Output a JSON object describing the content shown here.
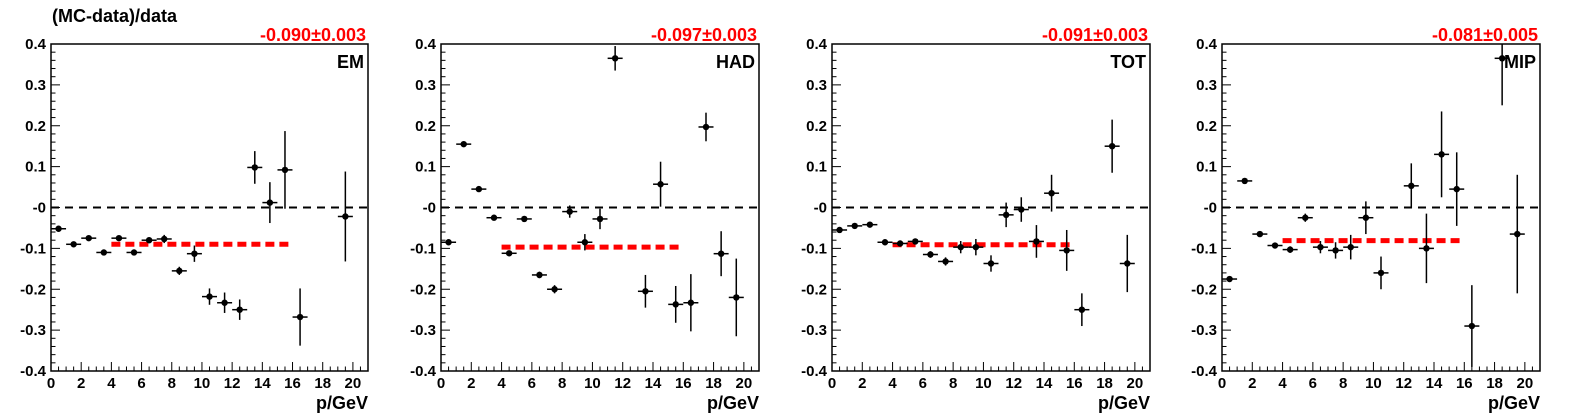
{
  "figure": {
    "ylabel": "(MC-data)/data"
  },
  "chart_data": [
    {
      "type": "scatter",
      "panel": "EM",
      "fit_label": "-0.090±0.003",
      "fit_value": -0.09,
      "fit_range": [
        4,
        16
      ],
      "xlabel": "p/GeV",
      "xlim": [
        0,
        21
      ],
      "ylim": [
        -0.4,
        0.4
      ],
      "x_ticks": [
        "0",
        "2",
        "4",
        "6",
        "8",
        "10",
        "12",
        "14",
        "16",
        "18",
        "20"
      ],
      "y_ticks": [
        "-0.4",
        "-0.3",
        "-0.2",
        "-0.1",
        "-0",
        "0.1",
        "0.2",
        "0.3",
        "0.4"
      ],
      "reference_line": 0,
      "points": [
        {
          "x": 0.5,
          "y": -0.052,
          "err": 0.004
        },
        {
          "x": 1.5,
          "y": -0.09,
          "err": 0.004
        },
        {
          "x": 2.5,
          "y": -0.075,
          "err": 0.004
        },
        {
          "x": 3.5,
          "y": -0.11,
          "err": 0.004
        },
        {
          "x": 4.5,
          "y": -0.075,
          "err": 0.006
        },
        {
          "x": 5.5,
          "y": -0.11,
          "err": 0.006
        },
        {
          "x": 6.5,
          "y": -0.08,
          "err": 0.007
        },
        {
          "x": 7.5,
          "y": -0.077,
          "err": 0.01
        },
        {
          "x": 8.5,
          "y": -0.155,
          "err": 0.01
        },
        {
          "x": 9.5,
          "y": -0.113,
          "err": 0.02
        },
        {
          "x": 10.5,
          "y": -0.218,
          "err": 0.02
        },
        {
          "x": 11.5,
          "y": -0.233,
          "err": 0.025
        },
        {
          "x": 12.5,
          "y": -0.25,
          "err": 0.025
        },
        {
          "x": 13.5,
          "y": 0.098,
          "err": 0.04
        },
        {
          "x": 14.5,
          "y": 0.012,
          "err": 0.05
        },
        {
          "x": 15.5,
          "y": 0.092,
          "err": 0.095
        },
        {
          "x": 16.5,
          "y": -0.268,
          "err": 0.07
        },
        {
          "x": 19.5,
          "y": -0.022,
          "err": 0.11
        }
      ]
    },
    {
      "type": "scatter",
      "panel": "HAD",
      "fit_label": "-0.097±0.003",
      "fit_value": -0.097,
      "fit_range": [
        4,
        16
      ],
      "xlabel": "p/GeV",
      "xlim": [
        0,
        21
      ],
      "ylim": [
        -0.4,
        0.4
      ],
      "x_ticks": [
        "0",
        "2",
        "4",
        "6",
        "8",
        "10",
        "12",
        "14",
        "16",
        "18",
        "20"
      ],
      "y_ticks": [
        "-0.4",
        "-0.3",
        "-0.2",
        "-0.1",
        "-0",
        "0.1",
        "0.2",
        "0.3",
        "0.4"
      ],
      "reference_line": 0,
      "points": [
        {
          "x": 0.5,
          "y": -0.085,
          "err": 0.005
        },
        {
          "x": 1.5,
          "y": 0.155,
          "err": 0.005
        },
        {
          "x": 2.5,
          "y": 0.045,
          "err": 0.005
        },
        {
          "x": 3.5,
          "y": -0.025,
          "err": 0.005
        },
        {
          "x": 4.5,
          "y": -0.112,
          "err": 0.006
        },
        {
          "x": 5.5,
          "y": -0.028,
          "err": 0.006
        },
        {
          "x": 6.5,
          "y": -0.165,
          "err": 0.008
        },
        {
          "x": 7.5,
          "y": -0.2,
          "err": 0.01
        },
        {
          "x": 8.5,
          "y": -0.01,
          "err": 0.015
        },
        {
          "x": 9.5,
          "y": -0.085,
          "err": 0.02
        },
        {
          "x": 10.5,
          "y": -0.028,
          "err": 0.025
        },
        {
          "x": 11.5,
          "y": 0.365,
          "err": 0.03
        },
        {
          "x": 13.5,
          "y": -0.205,
          "err": 0.04
        },
        {
          "x": 14.5,
          "y": 0.057,
          "err": 0.055
        },
        {
          "x": 15.5,
          "y": -0.237,
          "err": 0.045
        },
        {
          "x": 16.5,
          "y": -0.233,
          "err": 0.07
        },
        {
          "x": 17.5,
          "y": 0.197,
          "err": 0.035
        },
        {
          "x": 18.5,
          "y": -0.113,
          "err": 0.055
        },
        {
          "x": 19.5,
          "y": -0.22,
          "err": 0.095
        }
      ]
    },
    {
      "type": "scatter",
      "panel": "TOT",
      "fit_label": "-0.091±0.003",
      "fit_value": -0.091,
      "fit_range": [
        4,
        16
      ],
      "xlabel": "p/GeV",
      "xlim": [
        0,
        21
      ],
      "ylim": [
        -0.4,
        0.4
      ],
      "x_ticks": [
        "0",
        "2",
        "4",
        "6",
        "8",
        "10",
        "12",
        "14",
        "16",
        "18",
        "20"
      ],
      "y_ticks": [
        "-0.4",
        "-0.3",
        "-0.2",
        "-0.1",
        "-0",
        "0.1",
        "0.2",
        "0.3",
        "0.4"
      ],
      "reference_line": 0,
      "points": [
        {
          "x": 0.5,
          "y": -0.055,
          "err": 0.004
        },
        {
          "x": 1.5,
          "y": -0.045,
          "err": 0.004
        },
        {
          "x": 2.5,
          "y": -0.042,
          "err": 0.004
        },
        {
          "x": 3.5,
          "y": -0.085,
          "err": 0.004
        },
        {
          "x": 4.5,
          "y": -0.088,
          "err": 0.006
        },
        {
          "x": 5.5,
          "y": -0.083,
          "err": 0.006
        },
        {
          "x": 6.5,
          "y": -0.115,
          "err": 0.008
        },
        {
          "x": 7.5,
          "y": -0.132,
          "err": 0.01
        },
        {
          "x": 8.5,
          "y": -0.097,
          "err": 0.015
        },
        {
          "x": 9.5,
          "y": -0.097,
          "err": 0.02
        },
        {
          "x": 10.5,
          "y": -0.137,
          "err": 0.02
        },
        {
          "x": 11.5,
          "y": -0.018,
          "err": 0.03
        },
        {
          "x": 12.5,
          "y": -0.005,
          "err": 0.03
        },
        {
          "x": 13.5,
          "y": -0.083,
          "err": 0.04
        },
        {
          "x": 14.5,
          "y": 0.035,
          "err": 0.045
        },
        {
          "x": 15.5,
          "y": -0.105,
          "err": 0.05
        },
        {
          "x": 16.5,
          "y": -0.25,
          "err": 0.04
        },
        {
          "x": 18.5,
          "y": 0.15,
          "err": 0.065
        },
        {
          "x": 19.5,
          "y": -0.137,
          "err": 0.07
        }
      ]
    },
    {
      "type": "scatter",
      "panel": "MIP",
      "fit_label": "-0.081±0.005",
      "fit_value": -0.081,
      "fit_range": [
        4,
        16
      ],
      "xlabel": "p/GeV",
      "xlim": [
        0,
        21
      ],
      "ylim": [
        -0.4,
        0.4
      ],
      "x_ticks": [
        "0",
        "2",
        "4",
        "6",
        "8",
        "10",
        "12",
        "14",
        "16",
        "18",
        "20"
      ],
      "y_ticks": [
        "-0.4",
        "-0.3",
        "-0.2",
        "-0.1",
        "-0",
        "0.1",
        "0.2",
        "0.3",
        "0.4"
      ],
      "reference_line": 0,
      "points": [
        {
          "x": 0.5,
          "y": -0.175,
          "err": 0.005
        },
        {
          "x": 1.5,
          "y": 0.065,
          "err": 0.005
        },
        {
          "x": 2.5,
          "y": -0.065,
          "err": 0.005
        },
        {
          "x": 3.5,
          "y": -0.093,
          "err": 0.006
        },
        {
          "x": 4.5,
          "y": -0.103,
          "err": 0.008
        },
        {
          "x": 5.5,
          "y": -0.025,
          "err": 0.01
        },
        {
          "x": 6.5,
          "y": -0.097,
          "err": 0.015
        },
        {
          "x": 7.5,
          "y": -0.105,
          "err": 0.02
        },
        {
          "x": 8.5,
          "y": -0.097,
          "err": 0.03
        },
        {
          "x": 9.5,
          "y": -0.025,
          "err": 0.04
        },
        {
          "x": 10.5,
          "y": -0.16,
          "err": 0.04
        },
        {
          "x": 12.5,
          "y": 0.053,
          "err": 0.055
        },
        {
          "x": 13.5,
          "y": -0.1,
          "err": 0.085
        },
        {
          "x": 14.5,
          "y": 0.13,
          "err": 0.105
        },
        {
          "x": 15.5,
          "y": 0.045,
          "err": 0.09
        },
        {
          "x": 16.5,
          "y": -0.29,
          "err": 0.1
        },
        {
          "x": 18.5,
          "y": 0.365,
          "err": 0.115
        },
        {
          "x": 19.5,
          "y": -0.065,
          "err": 0.145
        }
      ]
    }
  ]
}
